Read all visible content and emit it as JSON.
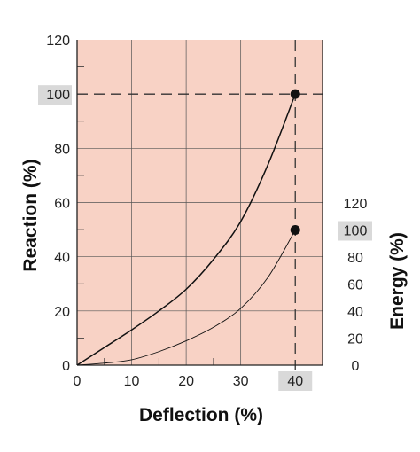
{
  "chart_data": {
    "type": "line",
    "x": [
      0,
      5,
      10,
      15,
      20,
      25,
      30,
      35,
      40
    ],
    "xlabel": "Deflection (%)",
    "xlim": [
      0,
      45
    ],
    "xticks": [
      0,
      10,
      20,
      30,
      40
    ],
    "highlight_x": 40,
    "left_axis": {
      "label": "Reaction (%)",
      "lim": [
        0,
        120
      ],
      "ticks": [
        0,
        20,
        40,
        60,
        80,
        100,
        120
      ],
      "highlight": 100
    },
    "right_axis": {
      "label": "Energy (%)",
      "lim": [
        0,
        120
      ],
      "ticks": [
        0,
        20,
        40,
        60,
        80,
        100,
        120
      ],
      "highlight": 100
    },
    "series": [
      {
        "axis": "left",
        "values": [
          0,
          6.5,
          13,
          20,
          28,
          39,
          53,
          74,
          100
        ],
        "end_marker": true
      },
      {
        "axis": "right",
        "values": [
          0,
          1.5,
          4,
          10,
          18,
          28,
          42,
          65,
          100
        ],
        "end_marker": true
      }
    ],
    "grid": true,
    "plot_background": "#f8d2c5",
    "highlight_box_color": "#d9d9d9",
    "line_color": "#111111"
  }
}
